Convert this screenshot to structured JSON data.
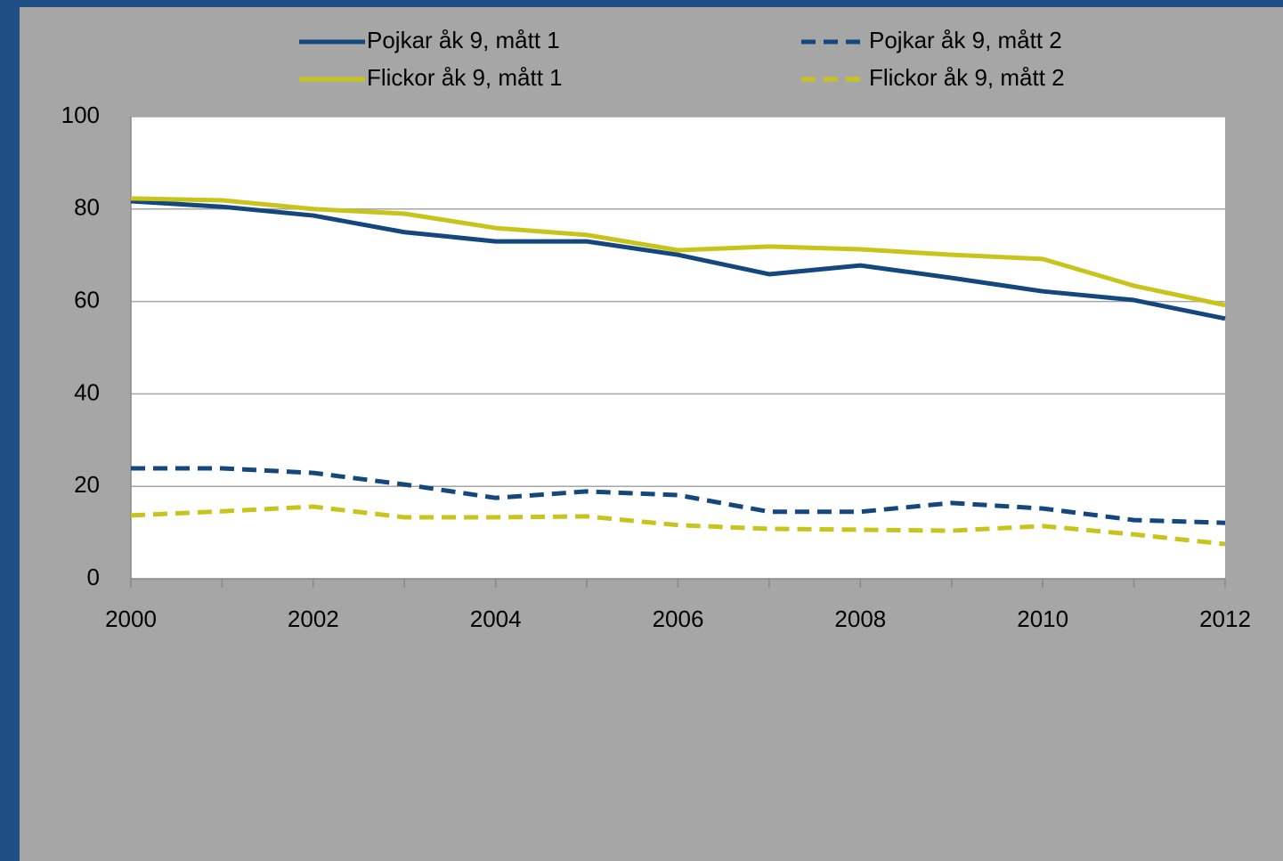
{
  "chart_data": {
    "type": "line",
    "x": [
      2000,
      2001,
      2002,
      2003,
      2004,
      2005,
      2006,
      2007,
      2008,
      2009,
      2010,
      2011,
      2012
    ],
    "series": [
      {
        "name": "Pojkar åk 9, mått 1",
        "color": "#14477d",
        "style": "solid",
        "values": [
          81.7,
          80.5,
          78.6,
          75,
          73,
          73,
          70.1,
          65.9,
          67.8,
          65.1,
          62.2,
          60.3,
          56.3
        ]
      },
      {
        "name": "Pojkar åk 9, mått 2",
        "color": "#14477d",
        "style": "dashed",
        "values": [
          23.9,
          23.9,
          22.9,
          20.4,
          17.5,
          18.9,
          18.1,
          14.5,
          14.5,
          16.4,
          15.2,
          12.7,
          12.1
        ]
      },
      {
        "name": "Flickor åk 9, mått 1",
        "color": "#c8c41c",
        "style": "solid",
        "values": [
          82.3,
          81.9,
          80,
          79,
          75.9,
          74.4,
          71.1,
          71.9,
          71.3,
          70.1,
          69.2,
          63.4,
          59.2
        ]
      },
      {
        "name": "Flickor åk 9, mått 2",
        "color": "#c8c41c",
        "style": "dashed",
        "values": [
          13.7,
          14.6,
          15.6,
          13.3,
          13.3,
          13.5,
          11.6,
          10.8,
          10.6,
          10.4,
          11.4,
          9.6,
          7.5
        ]
      }
    ],
    "xlim": [
      2000,
      2012
    ],
    "xticks": [
      2000,
      2002,
      2004,
      2006,
      2008,
      2010,
      2012
    ],
    "ylim": [
      0,
      100
    ],
    "yticks": [
      0,
      20,
      40,
      60,
      80,
      100
    ],
    "grid": true,
    "legend": "top"
  }
}
